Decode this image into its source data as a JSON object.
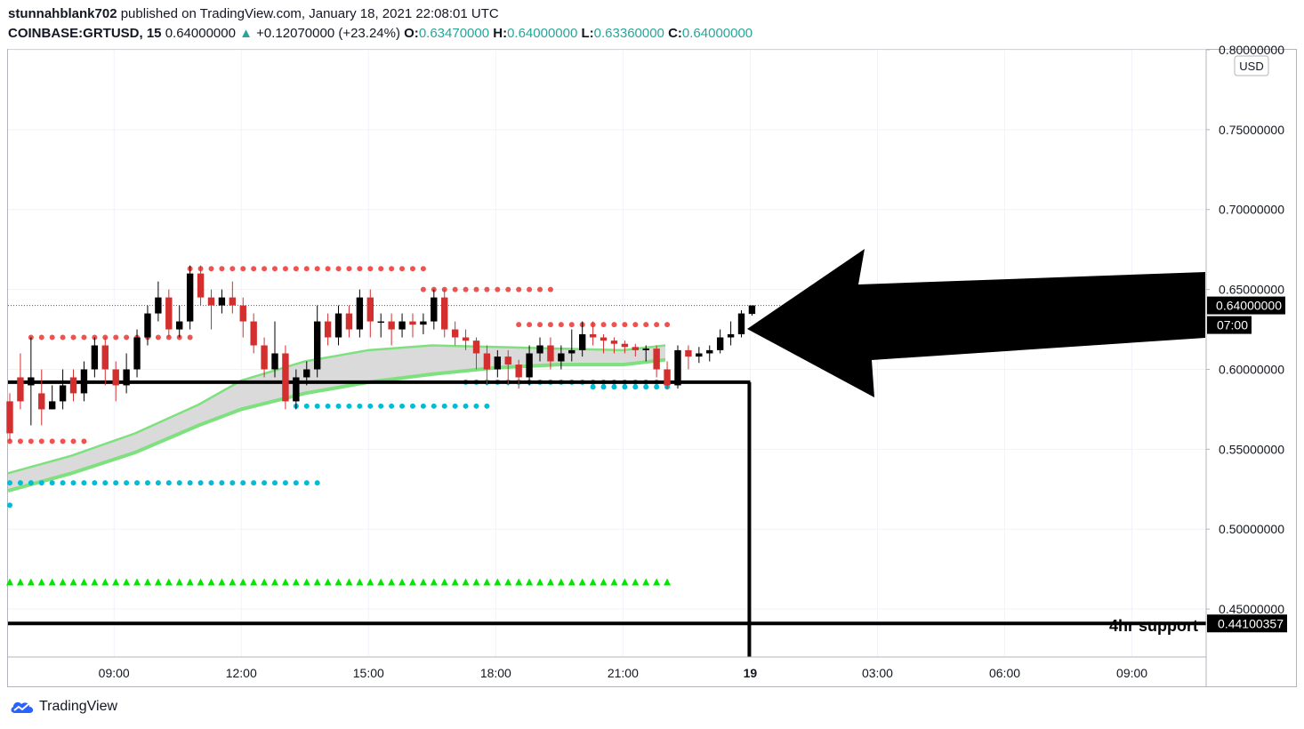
{
  "publish_line": {
    "user": "stunnahblank702",
    "text": "published on TradingView.com, January 18, 2021 22:08:01 UTC"
  },
  "symbol_line": {
    "symbol": "COINBASE:GRTUSD, 15",
    "last": "0.64000000",
    "change": "+0.12070000 (+23.24%)",
    "o_label": "O:",
    "o": "0.63470000",
    "h_label": "H:",
    "h": "0.64000000",
    "l_label": "L:",
    "l": "0.63360000",
    "c_label": "C:",
    "c": "0.64000000"
  },
  "brand": "TradingView",
  "currency": "USD",
  "price_tags": {
    "current": "0.64000000",
    "countdown": "07:00",
    "support": "0.44100357"
  },
  "annotation": "4hr support",
  "colors": {
    "up": "#000000",
    "down": "#d32f2f",
    "resistance_dots": "#ef5350",
    "support_dots": "#00bcd4",
    "signal_triangles": "#00e600",
    "band": "#7ee07e"
  },
  "chart_data": {
    "type": "candlestick",
    "ylim": [
      0.42,
      0.8
    ],
    "y_ticks": [
      "0.80000000",
      "0.75000000",
      "0.70000000",
      "0.65000000",
      "0.60000000",
      "0.55000000",
      "0.50000000",
      "0.45000000"
    ],
    "y_tick_values": [
      0.8,
      0.75,
      0.7,
      0.65,
      0.6,
      0.55,
      0.5,
      0.45
    ],
    "x_ticks": [
      "09:00",
      "12:00",
      "15:00",
      "18:00",
      "21:00",
      "19",
      "03:00",
      "06:00",
      "09:00"
    ],
    "x_tick_hours": [
      9,
      12,
      15,
      18,
      21,
      24,
      27,
      30,
      33
    ],
    "x_start_hour": 6.5,
    "x_end_hour": 34.75,
    "bar_minutes": 15,
    "candles": [
      [
        0.58,
        0.56,
        0.585,
        0.555
      ],
      [
        0.595,
        0.58,
        0.61,
        0.575
      ],
      [
        0.59,
        0.595,
        0.62,
        0.565
      ],
      [
        0.585,
        0.575,
        0.6,
        0.565
      ],
      [
        0.575,
        0.58,
        0.59,
        0.575
      ],
      [
        0.58,
        0.59,
        0.6,
        0.575
      ],
      [
        0.595,
        0.585,
        0.6,
        0.58
      ],
      [
        0.585,
        0.6,
        0.605,
        0.58
      ],
      [
        0.6,
        0.615,
        0.62,
        0.595
      ],
      [
        0.615,
        0.6,
        0.62,
        0.59
      ],
      [
        0.6,
        0.59,
        0.605,
        0.58
      ],
      [
        0.59,
        0.6,
        0.61,
        0.585
      ],
      [
        0.6,
        0.62,
        0.625,
        0.595
      ],
      [
        0.62,
        0.635,
        0.64,
        0.615
      ],
      [
        0.635,
        0.645,
        0.655,
        0.63
      ],
      [
        0.645,
        0.625,
        0.65,
        0.62
      ],
      [
        0.625,
        0.63,
        0.64,
        0.62
      ],
      [
        0.63,
        0.66,
        0.665,
        0.625
      ],
      [
        0.66,
        0.645,
        0.665,
        0.64
      ],
      [
        0.645,
        0.64,
        0.65,
        0.625
      ],
      [
        0.64,
        0.645,
        0.65,
        0.635
      ],
      [
        0.645,
        0.64,
        0.655,
        0.635
      ],
      [
        0.64,
        0.63,
        0.645,
        0.62
      ],
      [
        0.63,
        0.615,
        0.635,
        0.61
      ],
      [
        0.615,
        0.6,
        0.62,
        0.595
      ],
      [
        0.6,
        0.61,
        0.63,
        0.595
      ],
      [
        0.61,
        0.58,
        0.615,
        0.575
      ],
      [
        0.58,
        0.595,
        0.6,
        0.575
      ],
      [
        0.595,
        0.6,
        0.605,
        0.59
      ],
      [
        0.6,
        0.63,
        0.64,
        0.595
      ],
      [
        0.63,
        0.62,
        0.635,
        0.615
      ],
      [
        0.62,
        0.635,
        0.64,
        0.615
      ],
      [
        0.635,
        0.625,
        0.64,
        0.62
      ],
      [
        0.625,
        0.645,
        0.65,
        0.62
      ],
      [
        0.645,
        0.63,
        0.65,
        0.62
      ],
      [
        0.63,
        0.63,
        0.635,
        0.62
      ],
      [
        0.63,
        0.625,
        0.635,
        0.615
      ],
      [
        0.625,
        0.63,
        0.635,
        0.62
      ],
      [
        0.63,
        0.628,
        0.635,
        0.62
      ],
      [
        0.628,
        0.63,
        0.635,
        0.622
      ],
      [
        0.63,
        0.645,
        0.65,
        0.625
      ],
      [
        0.645,
        0.625,
        0.65,
        0.62
      ],
      [
        0.625,
        0.62,
        0.63,
        0.615
      ],
      [
        0.62,
        0.618,
        0.625,
        0.612
      ],
      [
        0.618,
        0.61,
        0.62,
        0.6
      ],
      [
        0.61,
        0.6,
        0.615,
        0.59
      ],
      [
        0.6,
        0.608,
        0.612,
        0.595
      ],
      [
        0.608,
        0.603,
        0.612,
        0.59
      ],
      [
        0.603,
        0.595,
        0.606,
        0.588
      ],
      [
        0.595,
        0.61,
        0.615,
        0.59
      ],
      [
        0.61,
        0.615,
        0.62,
        0.605
      ],
      [
        0.615,
        0.605,
        0.62,
        0.6
      ],
      [
        0.605,
        0.61,
        0.615,
        0.6
      ],
      [
        0.61,
        0.612,
        0.625,
        0.605
      ],
      [
        0.612,
        0.622,
        0.63,
        0.608
      ],
      [
        0.622,
        0.62,
        0.63,
        0.615
      ],
      [
        0.62,
        0.618,
        0.622,
        0.61
      ],
      [
        0.618,
        0.616,
        0.62,
        0.61
      ],
      [
        0.616,
        0.614,
        0.618,
        0.61
      ],
      [
        0.614,
        0.612,
        0.616,
        0.608
      ],
      [
        0.612,
        0.613,
        0.615,
        0.605
      ],
      [
        0.613,
        0.6,
        0.615,
        0.595
      ],
      [
        0.6,
        0.59,
        0.605,
        0.588
      ],
      [
        0.59,
        0.612,
        0.615,
        0.588
      ],
      [
        0.612,
        0.608,
        0.615,
        0.6
      ],
      [
        0.608,
        0.61,
        0.614,
        0.604
      ],
      [
        0.61,
        0.612,
        0.615,
        0.605
      ],
      [
        0.612,
        0.62,
        0.625,
        0.61
      ],
      [
        0.62,
        0.622,
        0.63,
        0.615
      ],
      [
        0.622,
        0.635,
        0.637,
        0.62
      ],
      [
        0.6347,
        0.64,
        0.64,
        0.6336
      ]
    ],
    "resistance_dot_lines": [
      {
        "from": 6.5,
        "to": 8.25,
        "value": 0.555
      },
      {
        "from": 7.0,
        "to": 10.75,
        "value": 0.62
      },
      {
        "from": 10.75,
        "to": 16.25,
        "value": 0.663
      },
      {
        "from": 16.25,
        "to": 19.25,
        "value": 0.65
      },
      {
        "from": 18.5,
        "to": 22.0,
        "value": 0.628
      }
    ],
    "support_dot_lines": [
      {
        "from": 6.5,
        "to": 6.5,
        "value": 0.515
      },
      {
        "from": 6.5,
        "to": 13.75,
        "value": 0.529
      },
      {
        "from": 13.25,
        "to": 17.75,
        "value": 0.577
      },
      {
        "from": 17.25,
        "to": 22.0,
        "value": 0.592
      },
      {
        "from": 20.25,
        "to": 22.0,
        "value": 0.589
      }
    ],
    "signal_triangle_level": 0.467,
    "band_upper": [
      [
        6.5,
        0.535
      ],
      [
        8.0,
        0.546
      ],
      [
        9.5,
        0.56
      ],
      [
        11.0,
        0.578
      ],
      [
        12.0,
        0.593
      ],
      [
        13.5,
        0.605
      ],
      [
        15.0,
        0.612
      ],
      [
        16.5,
        0.615
      ],
      [
        18.0,
        0.614
      ],
      [
        19.5,
        0.613
      ],
      [
        21.0,
        0.612
      ],
      [
        22.0,
        0.615
      ]
    ],
    "band_lower": [
      [
        6.5,
        0.524
      ],
      [
        8.0,
        0.535
      ],
      [
        9.5,
        0.548
      ],
      [
        11.0,
        0.565
      ],
      [
        12.0,
        0.575
      ],
      [
        13.5,
        0.585
      ],
      [
        15.0,
        0.592
      ],
      [
        16.5,
        0.597
      ],
      [
        18.0,
        0.601
      ],
      [
        19.5,
        0.603
      ],
      [
        21.0,
        0.603
      ],
      [
        22.0,
        0.606
      ]
    ],
    "horizontal_lines": [
      {
        "value": 0.592,
        "to_hour": 24
      },
      {
        "value": 0.441,
        "to_hour": 34.75
      }
    ],
    "vertical_line_hour": 24,
    "current_price": 0.64
  }
}
